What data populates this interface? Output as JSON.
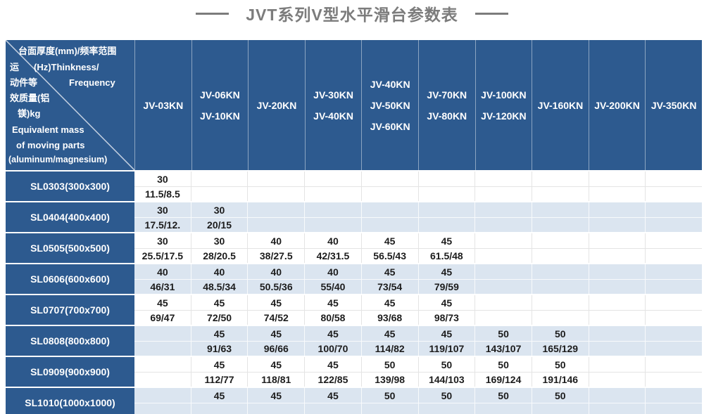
{
  "title": "JVT系列V型水平滑台参数表",
  "corner": {
    "line1": "台面厚度(mm)/频率范围",
    "line2_cn": "运",
    "line2_en": "(Hz)Thinkness/",
    "line3_cn": "动件等",
    "line3_en": "Frequency",
    "line4": "效质量(铝",
    "line5": "镁)kg",
    "line6": "Equivalent mass",
    "line7": "of moving parts",
    "line8": "(aluminum/magnesium)"
  },
  "chart_data": {
    "type": "table",
    "title": "JVT系列V型水平滑台参数表",
    "corner_top_label": "台面厚度(mm)/频率范围(Hz)Thinkness/Frequency",
    "corner_bottom_label": "运动件等效质量(铝镁)kg Equivalent mass of moving parts (aluminum/magnesium)",
    "column_headers": [
      [
        "JV-03KN"
      ],
      [
        "JV-06KN",
        "JV-10KN"
      ],
      [
        "JV-20KN"
      ],
      [
        "JV-30KN",
        "JV-40KN"
      ],
      [
        "JV-40KN",
        "JV-50KN",
        "JV-60KN"
      ],
      [
        "JV-70KN",
        "JV-80KN"
      ],
      [
        "JV-100KN",
        "JV-120KN"
      ],
      [
        "JV-160KN"
      ],
      [
        "JV-200KN"
      ],
      [
        "JV-350KN"
      ]
    ],
    "rows": [
      {
        "label": "SL0303(300x300)",
        "cells": [
          [
            "30",
            "11.5/8.5"
          ],
          [
            "",
            ""
          ],
          [
            "",
            ""
          ],
          [
            "",
            ""
          ],
          [
            "",
            ""
          ],
          [
            "",
            ""
          ],
          [
            "",
            ""
          ],
          [
            "",
            ""
          ],
          [
            "",
            ""
          ],
          [
            "",
            ""
          ]
        ]
      },
      {
        "label": "SL0404(400x400)",
        "cells": [
          [
            "30",
            "17.5/12."
          ],
          [
            "30",
            "20/15"
          ],
          [
            "",
            ""
          ],
          [
            "",
            ""
          ],
          [
            "",
            ""
          ],
          [
            "",
            ""
          ],
          [
            "",
            ""
          ],
          [
            "",
            ""
          ],
          [
            "",
            ""
          ],
          [
            "",
            ""
          ]
        ]
      },
      {
        "label": "SL0505(500x500)",
        "cells": [
          [
            "30",
            "25.5/17.5"
          ],
          [
            "30",
            "28/20.5"
          ],
          [
            "40",
            "38/27.5"
          ],
          [
            "40",
            "42/31.5"
          ],
          [
            "45",
            "56.5/43"
          ],
          [
            "45",
            "61.5/48"
          ],
          [
            "",
            ""
          ],
          [
            "",
            ""
          ],
          [
            "",
            ""
          ],
          [
            "",
            ""
          ]
        ]
      },
      {
        "label": "SL0606(600x600)",
        "cells": [
          [
            "40",
            "46/31"
          ],
          [
            "40",
            "48.5/34"
          ],
          [
            "40",
            "50.5/36"
          ],
          [
            "40",
            "55/40"
          ],
          [
            "45",
            "73/54"
          ],
          [
            "45",
            "79/59"
          ],
          [
            "",
            ""
          ],
          [
            "",
            ""
          ],
          [
            "",
            ""
          ],
          [
            "",
            ""
          ]
        ]
      },
      {
        "label": "SL0707(700x700)",
        "cells": [
          [
            "45",
            "69/47"
          ],
          [
            "45",
            "72/50"
          ],
          [
            "45",
            "74/52"
          ],
          [
            "45",
            "80/58"
          ],
          [
            "45",
            "93/68"
          ],
          [
            "45",
            "98/73"
          ],
          [
            "",
            ""
          ],
          [
            "",
            ""
          ],
          [
            "",
            ""
          ],
          [
            "",
            ""
          ]
        ]
      },
      {
        "label": "SL0808(800x800)",
        "cells": [
          [
            "",
            ""
          ],
          [
            "45",
            "91/63"
          ],
          [
            "45",
            "96/66"
          ],
          [
            "45",
            "100/70"
          ],
          [
            "45",
            "114/82"
          ],
          [
            "45",
            "119/107"
          ],
          [
            "50",
            "143/107"
          ],
          [
            "50",
            "165/129"
          ],
          [
            "",
            ""
          ],
          [
            "",
            ""
          ]
        ]
      },
      {
        "label": "SL0909(900x900)",
        "cells": [
          [
            "",
            ""
          ],
          [
            "45",
            "112/77"
          ],
          [
            "45",
            "118/81"
          ],
          [
            "45",
            "122/85"
          ],
          [
            "50",
            "139/98"
          ],
          [
            "50",
            "144/103"
          ],
          [
            "50",
            "169/124"
          ],
          [
            "50",
            "191/146"
          ],
          [
            "",
            ""
          ],
          [
            "",
            ""
          ]
        ]
      },
      {
        "label": "SL1010(1000x1000)",
        "cells": [
          [
            "",
            ""
          ],
          [
            "45",
            ""
          ],
          [
            "45",
            ""
          ],
          [
            "45",
            ""
          ],
          [
            "50",
            ""
          ],
          [
            "50",
            ""
          ],
          [
            "50",
            ""
          ],
          [
            "50",
            ""
          ],
          [
            "",
            ""
          ],
          [
            "",
            ""
          ]
        ]
      }
    ]
  },
  "colors": {
    "header_blue": "#2d5a8f",
    "stripe_blue": "#dbe5f0",
    "title_gray": "#7c7c7c"
  }
}
